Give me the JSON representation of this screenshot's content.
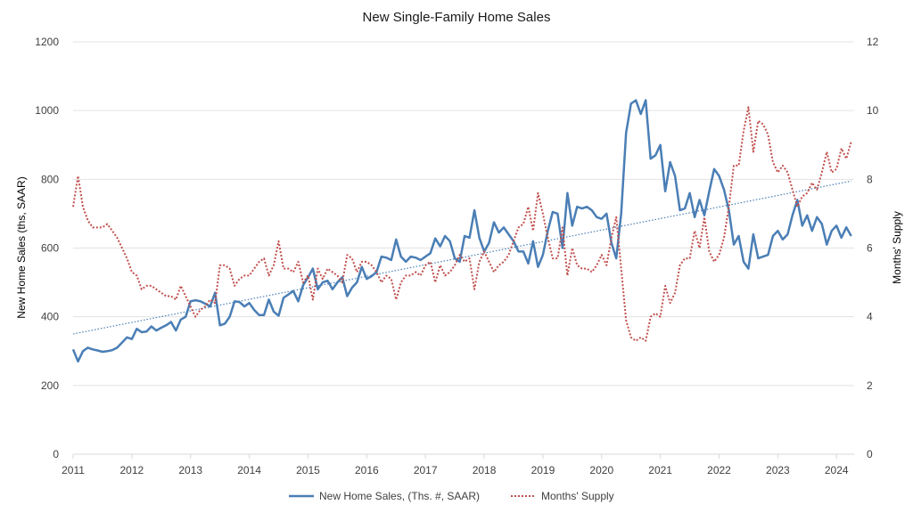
{
  "chart_data": {
    "type": "line",
    "title": "New Single-Family Home Sales",
    "ylabel_left": "New Home Sales (ths, SAAR)",
    "ylabel_right": "Months' Supply",
    "ylim_left": [
      0,
      1200
    ],
    "ylim_right": [
      0,
      12
    ],
    "yticks_left": [
      0,
      200,
      400,
      600,
      800,
      1000,
      1200
    ],
    "yticks_right": [
      0,
      2,
      4,
      6,
      8,
      10,
      12
    ],
    "xlim": [
      2011.0,
      2024.3
    ],
    "xticks": [
      2011,
      2012,
      2013,
      2014,
      2015,
      2016,
      2017,
      2018,
      2019,
      2020,
      2021,
      2022,
      2023,
      2024
    ],
    "grid": "horizontal",
    "legend_position": "bottom",
    "trendline": {
      "series": "New Home Sales, (Ths. #, SAAR)",
      "start": [
        2011.0,
        350
      ],
      "end": [
        2024.25,
        795
      ]
    },
    "series": [
      {
        "name": "New Home Sales, (Ths. #, SAAR)",
        "axis": "left",
        "color": "#4a7eb5",
        "style": "solid",
        "start": 2011.0,
        "step": 0.0833333,
        "values": [
          305,
          270,
          300,
          310,
          305,
          302,
          298,
          300,
          303,
          310,
          325,
          340,
          335,
          365,
          355,
          357,
          372,
          360,
          368,
          375,
          385,
          360,
          392,
          400,
          445,
          448,
          445,
          438,
          430,
          470,
          375,
          380,
          400,
          445,
          443,
          430,
          440,
          420,
          405,
          405,
          450,
          415,
          403,
          455,
          465,
          475,
          445,
          492,
          515,
          540,
          480,
          500,
          505,
          480,
          500,
          515,
          460,
          485,
          500,
          545,
          510,
          518,
          530,
          575,
          572,
          565,
          625,
          575,
          560,
          575,
          572,
          565,
          575,
          585,
          628,
          605,
          635,
          620,
          570,
          560,
          635,
          630,
          710,
          630,
          590,
          615,
          675,
          645,
          660,
          640,
          620,
          590,
          590,
          555,
          620,
          545,
          580,
          650,
          705,
          700,
          600,
          760,
          665,
          720,
          715,
          720,
          710,
          690,
          685,
          700,
          615,
          570,
          700,
          935,
          1020,
          1030,
          990,
          1030,
          860,
          870,
          900,
          765,
          850,
          810,
          710,
          715,
          760,
          690,
          740,
          695,
          765,
          830,
          810,
          770,
          710,
          610,
          635,
          560,
          540,
          640,
          570,
          575,
          580,
          635,
          650,
          625,
          640,
          695,
          740,
          665,
          695,
          650,
          690,
          670,
          610,
          650,
          665,
          630,
          660,
          635
        ]
      },
      {
        "name": "Months' Supply",
        "axis": "right",
        "color": "#c0504d",
        "style": "dotted",
        "start": 2011.0,
        "step": 0.0833333,
        "values": [
          7.2,
          8.1,
          7.2,
          6.8,
          6.6,
          6.6,
          6.6,
          6.7,
          6.5,
          6.3,
          6.0,
          5.7,
          5.3,
          5.2,
          4.8,
          4.9,
          4.9,
          4.8,
          4.7,
          4.6,
          4.6,
          4.5,
          4.9,
          4.6,
          4.3,
          4.0,
          4.2,
          4.3,
          4.5,
          4.4,
          5.5,
          5.5,
          5.4,
          4.9,
          5.1,
          5.2,
          5.2,
          5.4,
          5.6,
          5.7,
          5.2,
          5.5,
          6.2,
          5.4,
          5.4,
          5.3,
          5.6,
          5.0,
          5.2,
          4.5,
          5.4,
          5.1,
          5.4,
          5.3,
          5.2,
          5.0,
          5.8,
          5.7,
          5.3,
          5.6,
          5.6,
          5.5,
          5.3,
          5.0,
          5.2,
          5.1,
          4.5,
          5.0,
          5.2,
          5.2,
          5.3,
          5.2,
          5.5,
          5.6,
          5.0,
          5.5,
          5.2,
          5.3,
          5.5,
          5.8,
          5.6,
          5.7,
          4.8,
          5.6,
          5.9,
          5.6,
          5.3,
          5.5,
          5.6,
          5.8,
          6.2,
          6.6,
          6.7,
          7.2,
          6.5,
          7.6,
          7.0,
          6.3,
          5.7,
          5.7,
          6.6,
          5.2,
          6.0,
          5.5,
          5.4,
          5.4,
          5.3,
          5.5,
          5.8,
          5.5,
          6.3,
          6.9,
          5.4,
          3.9,
          3.4,
          3.3,
          3.4,
          3.3,
          4.0,
          4.1,
          4.0,
          4.9,
          4.4,
          4.7,
          5.5,
          5.7,
          5.7,
          6.5,
          6.0,
          6.9,
          5.9,
          5.6,
          5.8,
          6.3,
          7.2,
          8.4,
          8.4,
          9.4,
          10.1,
          8.8,
          9.7,
          9.6,
          9.3,
          8.5,
          8.2,
          8.4,
          8.2,
          7.7,
          7.2,
          7.5,
          7.6,
          7.9,
          7.7,
          8.2,
          8.8,
          8.2,
          8.3,
          8.9,
          8.6,
          9.1
        ]
      }
    ]
  }
}
